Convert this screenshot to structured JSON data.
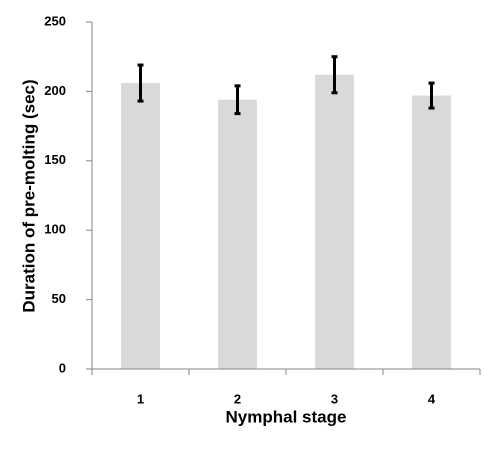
{
  "chart_data": {
    "type": "bar",
    "x_label": "Nymphal stage",
    "y_label": "Duration of pre-molting (sec)",
    "categories": [
      "1",
      "2",
      "3",
      "4"
    ],
    "values": [
      206,
      194,
      212,
      197
    ],
    "errors": [
      13,
      10,
      13,
      9
    ],
    "color": "#d9d9d9",
    "error_color": "#000000",
    "ylim": [
      0,
      250
    ],
    "yticks": [
      0,
      50,
      100,
      150,
      200,
      250
    ],
    "grid": false
  }
}
